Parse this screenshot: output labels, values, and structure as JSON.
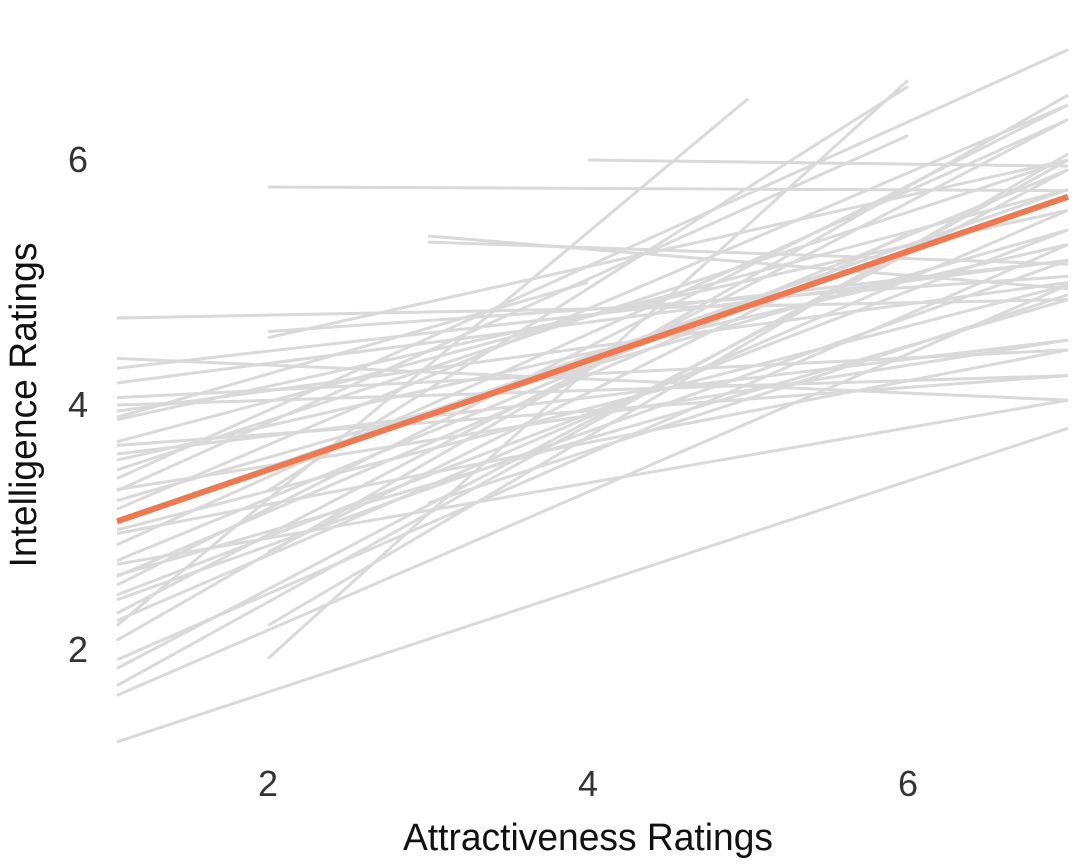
{
  "chart_data": {
    "type": "line",
    "xlabel": "Attractiveness Ratings",
    "ylabel": "Intelligence Ratings",
    "xlim": [
      1,
      7
    ],
    "ylim": [
      1.2,
      7.3
    ],
    "x_ticks": [
      "2",
      "4",
      "6"
    ],
    "y_ticks": [
      "2",
      "4",
      "6"
    ],
    "grid": false,
    "colors": {
      "individual": "#d9d9d9",
      "average": "#f07850"
    },
    "average_line": {
      "x": [
        1,
        7
      ],
      "y": [
        3.05,
        5.7
      ]
    },
    "individual_lines": [
      [
        1,
        4.71,
        7,
        4.86
      ],
      [
        1,
        4.38,
        7,
        4.04
      ],
      [
        1,
        4.18,
        7,
        5.18
      ],
      [
        1,
        4.06,
        7,
        4.45
      ],
      [
        1,
        3.88,
        7,
        5.59
      ],
      [
        1,
        3.67,
        7,
        4.24
      ],
      [
        1,
        3.55,
        7,
        5.31
      ],
      [
        1,
        3.47,
        7,
        6.0
      ],
      [
        1,
        3.31,
        7,
        4.53
      ],
      [
        1,
        3.22,
        7,
        5.43
      ],
      [
        1,
        3.06,
        7,
        5.76
      ],
      [
        1,
        2.98,
        7,
        4.98
      ],
      [
        1,
        2.86,
        7,
        6.33
      ],
      [
        1,
        2.73,
        7,
        5.92
      ],
      [
        1,
        2.61,
        7,
        4.86
      ],
      [
        1,
        2.53,
        7,
        6.45
      ],
      [
        1,
        2.41,
        7,
        5.18
      ],
      [
        1,
        2.24,
        7,
        5.59
      ],
      [
        1,
        2.08,
        7,
        6.53
      ],
      [
        1,
        1.92,
        7,
        5.31
      ],
      [
        1,
        1.71,
        7,
        6.0
      ],
      [
        1,
        1.63,
        7,
        4.98
      ],
      [
        1,
        1.25,
        7,
        3.81
      ],
      [
        1,
        4.0,
        7,
        4.24
      ],
      [
        1,
        3.95,
        7,
        5.0
      ],
      [
        1,
        3.4,
        7,
        6.9
      ],
      [
        1,
        2.95,
        7,
        4.45
      ],
      [
        1,
        3.7,
        7,
        5.76
      ],
      [
        1,
        2.3,
        7,
        6.33
      ],
      [
        1,
        2.7,
        7,
        4.04
      ],
      [
        1,
        3.15,
        7,
        6.45
      ],
      [
        1,
        3.6,
        7,
        4.53
      ],
      [
        1,
        1.85,
        7,
        5.92
      ],
      [
        1,
        2.45,
        7,
        5.43
      ],
      [
        1,
        4.3,
        7,
        5.18
      ],
      [
        2,
        5.78,
        7,
        5.75
      ],
      [
        2,
        4.6,
        7,
        5.05
      ],
      [
        2,
        4.55,
        7,
        6.0
      ],
      [
        2,
        2.2,
        7,
        6.05
      ],
      [
        2,
        1.93,
        6,
        6.65
      ],
      [
        3,
        5.38,
        7,
        4.95
      ],
      [
        3,
        5.33,
        7,
        5.15
      ],
      [
        1,
        2.2,
        5,
        6.5
      ],
      [
        2,
        3.3,
        6,
        6.6
      ],
      [
        1,
        3.9,
        4,
        5.0
      ],
      [
        1,
        2.6,
        5,
        4.8
      ],
      [
        2,
        2.8,
        6,
        5.4
      ],
      [
        3,
        3.2,
        7,
        4.9
      ],
      [
        1,
        3.3,
        6,
        6.2
      ],
      [
        4,
        6.0,
        7,
        5.95
      ]
    ]
  }
}
